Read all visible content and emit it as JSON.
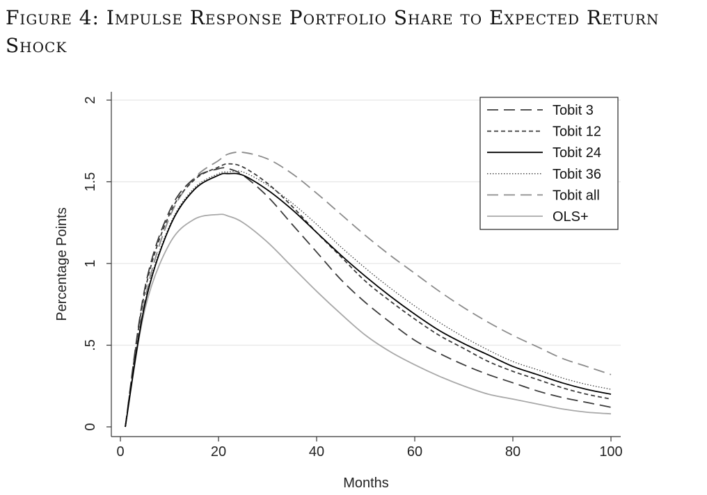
{
  "figure": {
    "title": "Figure 4:  Impulse Response Portfolio Share to Expected Return Shock"
  },
  "chart_data": {
    "type": "line",
    "xlabel": "Months",
    "ylabel": "Percentage Points",
    "xlim": [
      0,
      100
    ],
    "ylim": [
      0,
      2
    ],
    "xticks": [
      0,
      20,
      40,
      60,
      80,
      100
    ],
    "xtick_labels": [
      "0",
      "20",
      "40",
      "60",
      "80",
      "100"
    ],
    "yticks": [
      0,
      0.5,
      1,
      1.5,
      2
    ],
    "ytick_labels": [
      "0",
      ".5",
      "1",
      "1.5",
      "2"
    ],
    "grid": "horizontal",
    "legend_position": "top-right",
    "x": [
      1,
      5,
      10,
      15,
      20,
      22,
      25,
      30,
      35,
      40,
      45,
      50,
      55,
      60,
      65,
      70,
      75,
      80,
      85,
      90,
      95,
      100
    ],
    "series": [
      {
        "name": "Tobit 3",
        "style": "long-dash",
        "color": "#3a3a3a",
        "values": [
          0.0,
          0.85,
          1.32,
          1.52,
          1.58,
          1.58,
          1.54,
          1.41,
          1.24,
          1.07,
          0.9,
          0.76,
          0.64,
          0.53,
          0.45,
          0.38,
          0.32,
          0.27,
          0.22,
          0.18,
          0.15,
          0.12
        ]
      },
      {
        "name": "Tobit 12",
        "style": "short-dash",
        "color": "#3a3a3a",
        "values": [
          0.0,
          0.83,
          1.3,
          1.51,
          1.59,
          1.61,
          1.59,
          1.49,
          1.35,
          1.19,
          1.04,
          0.89,
          0.77,
          0.66,
          0.56,
          0.48,
          0.4,
          0.34,
          0.29,
          0.24,
          0.2,
          0.17
        ]
      },
      {
        "name": "Tobit 24",
        "style": "solid",
        "color": "#000000",
        "values": [
          0.0,
          0.75,
          1.22,
          1.45,
          1.54,
          1.55,
          1.54,
          1.45,
          1.33,
          1.19,
          1.05,
          0.92,
          0.8,
          0.69,
          0.59,
          0.51,
          0.44,
          0.37,
          0.32,
          0.27,
          0.23,
          0.2
        ]
      },
      {
        "name": "Tobit 36",
        "style": "dotted",
        "color": "#3a3a3a",
        "values": [
          0.0,
          0.76,
          1.23,
          1.46,
          1.55,
          1.56,
          1.56,
          1.48,
          1.37,
          1.24,
          1.1,
          0.97,
          0.85,
          0.74,
          0.64,
          0.55,
          0.47,
          0.4,
          0.35,
          0.3,
          0.26,
          0.23
        ]
      },
      {
        "name": "Tobit all",
        "style": "long-dash",
        "color": "#8a8a8a",
        "values": [
          0.0,
          0.78,
          1.28,
          1.52,
          1.63,
          1.67,
          1.68,
          1.64,
          1.55,
          1.43,
          1.3,
          1.17,
          1.05,
          0.94,
          0.83,
          0.73,
          0.64,
          0.56,
          0.49,
          0.42,
          0.37,
          0.32
        ]
      },
      {
        "name": "OLS+",
        "style": "solid",
        "color": "#a8a8a8",
        "values": [
          0.0,
          0.72,
          1.12,
          1.27,
          1.3,
          1.29,
          1.25,
          1.13,
          0.98,
          0.83,
          0.69,
          0.56,
          0.46,
          0.38,
          0.31,
          0.25,
          0.2,
          0.17,
          0.14,
          0.11,
          0.09,
          0.08
        ]
      }
    ]
  }
}
